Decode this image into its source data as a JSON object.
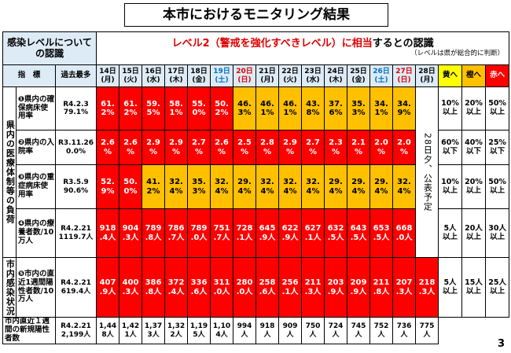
{
  "title": "本市におけるモニタリング結果",
  "recognition": {
    "label": "感染レベルについての認識",
    "message_red": "レベル2（警戒を強化すべきレベル）に相当",
    "message_black": "するとの認識",
    "note": "（レベルは県が総合的に判断）"
  },
  "header": {
    "indicator": "指　標",
    "record": "過去最多",
    "dates": [
      {
        "day": "14日",
        "weekday": "(月)",
        "color": "#000000"
      },
      {
        "day": "15日",
        "weekday": "(火)",
        "color": "#000000"
      },
      {
        "day": "16日",
        "weekday": "(水)",
        "color": "#000000"
      },
      {
        "day": "17日",
        "weekday": "(木)",
        "color": "#000000"
      },
      {
        "day": "18日",
        "weekday": "(金)",
        "color": "#000000"
      },
      {
        "day": "19日",
        "weekday": "(土)",
        "color": "#0070c0"
      },
      {
        "day": "20日",
        "weekday": "(日)",
        "color": "#e00000"
      },
      {
        "day": "21日",
        "weekday": "(月)",
        "color": "#000000"
      },
      {
        "day": "22日",
        "weekday": "(火)",
        "color": "#000000"
      },
      {
        "day": "23日",
        "weekday": "(水)",
        "color": "#000000"
      },
      {
        "day": "24日",
        "weekday": "(木)",
        "color": "#000000"
      },
      {
        "day": "25日",
        "weekday": "(金)",
        "color": "#000000"
      },
      {
        "day": "26日",
        "weekday": "(土)",
        "color": "#0070c0"
      },
      {
        "day": "27日",
        "weekday": "(日)",
        "color": "#e00000"
      },
      {
        "day": "28日",
        "weekday": "(月)",
        "color": "#000000"
      }
    ],
    "thresholds": [
      "黄へ",
      "橙へ",
      "赤へ"
    ]
  },
  "groups": [
    "県内の医療体制等の負荷",
    "市内感染状況"
  ],
  "rows": [
    {
      "label": "❶県内の確保病床使用率",
      "record_date": "R4.2.3",
      "record_value": "79.1%",
      "values": [
        "61.2%",
        "61.2%",
        "59.5%",
        "58.1%",
        "55.0%",
        "50.2%",
        "46.3%",
        "46.1%",
        "46.1%",
        "43.8%",
        "37.6%",
        "35.3%",
        "34.1%",
        "34.9%"
      ],
      "colors": [
        "red",
        "red",
        "red",
        "red",
        "red",
        "red",
        "orange",
        "orange",
        "orange",
        "orange",
        "orange",
        "orange",
        "orange",
        "orange"
      ],
      "thresholds": [
        "10%以上",
        "20%以上",
        "50%以上"
      ]
    },
    {
      "label": "❷県内の入院率",
      "record_date": "R3.11.26",
      "record_value": "0.0%",
      "values": [
        "2.6%",
        "2.6%",
        "2.9%",
        "2.9%",
        "2.7%",
        "2.6%",
        "2.5%",
        "2.8%",
        "2.9%",
        "2.7%",
        "2.3%",
        "2.1%",
        "2.0%",
        "2.0%"
      ],
      "colors": [
        "red",
        "red",
        "red",
        "red",
        "red",
        "red",
        "red",
        "red",
        "red",
        "red",
        "red",
        "red",
        "red",
        "red"
      ],
      "thresholds": [
        "60%以下",
        "40%以下",
        "25%以下"
      ]
    },
    {
      "label": "❸県内の重症病床使用率",
      "record_date": "R3.5.9",
      "record_value": "90.6%",
      "values": [
        "52.9%",
        "50.0%",
        "41.2%",
        "32.4%",
        "35.3%",
        "32.4%",
        "29.4%",
        "32.4%",
        "32.4%",
        "32.4%",
        "29.4%",
        "29.4%",
        "29.4%",
        "32.4%"
      ],
      "colors": [
        "red",
        "red",
        "orange",
        "orange",
        "orange",
        "orange",
        "orange",
        "orange",
        "orange",
        "orange",
        "orange",
        "orange",
        "orange",
        "orange"
      ],
      "thresholds": [
        "10%以上",
        "20%以上",
        "50%以上"
      ]
    },
    {
      "label": "❹県内の療養者数/10万人",
      "record_date": "R4.2.21",
      "record_value": "1119.7人",
      "values": [
        "918.4人",
        "904.3人",
        "789.8人",
        "786.7人",
        "789.0人",
        "751.7人",
        "728.1人",
        "645.9人",
        "622.9人",
        "627.1人",
        "632.5人",
        "643.5人",
        "653.5人",
        "668.0人"
      ],
      "colors": [
        "red",
        "red",
        "red",
        "red",
        "red",
        "red",
        "red",
        "red",
        "red",
        "red",
        "red",
        "red",
        "red",
        "red"
      ],
      "thresholds": [
        "5人以上",
        "20人以上",
        "30人以上"
      ]
    },
    {
      "label": "❺市内の直近1週間陽性者数/10万人",
      "record_date": "R4.2.21",
      "record_value": "619.4人",
      "values": [
        "407.9人",
        "400.3人",
        "386.8人",
        "372.4人",
        "336.6人",
        "311.0人",
        "280.0人",
        "258.6人",
        "256.1人",
        "211.3人",
        "203.9人",
        "209.9人",
        "211.8人",
        "207.3人",
        "218.3人"
      ],
      "colors": [
        "red",
        "red",
        "red",
        "red",
        "red",
        "red",
        "red",
        "red",
        "red",
        "red",
        "red",
        "red",
        "red",
        "red",
        "red"
      ],
      "thresholds": [
        "5人以上",
        "15人以上",
        "25人以上"
      ]
    },
    {
      "label": "市内直近１週間の新規陽性者数",
      "record_date": "R4.2.21",
      "record_value": "2,199人",
      "values": [
        "1,448人",
        "1,421人",
        "1,373人",
        "1,322人",
        "1,195人",
        "1,104人",
        "994人",
        "918人",
        "909人",
        "750人",
        "724人",
        "745人",
        "752人",
        "736人",
        "775人"
      ],
      "colors": [
        "white",
        "white",
        "white",
        "white",
        "white",
        "white",
        "white",
        "white",
        "white",
        "white",
        "white",
        "white",
        "white",
        "white",
        "white"
      ]
    }
  ],
  "pending": "28日夕、公表予定",
  "page_number": "3"
}
